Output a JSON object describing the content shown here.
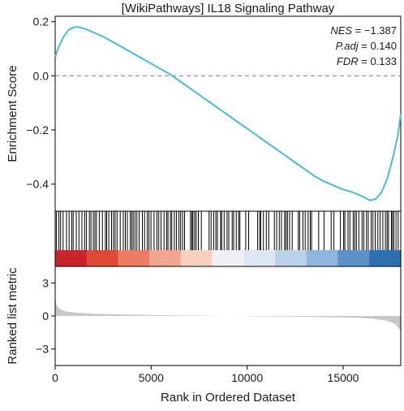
{
  "chart_data": {
    "type": "line",
    "title": "[WikiPathways] IL18 Signaling Pathway",
    "xlabel": "Rank in Ordered Dataset",
    "xlim": [
      0,
      18000
    ],
    "x_ticks": [
      0,
      5000,
      10000,
      15000
    ],
    "panels": {
      "enrichment": {
        "ylabel": "Enrichment Score",
        "ylim": [
          -0.5,
          0.22
        ],
        "y_ticks": [
          0.2,
          0.0,
          -0.2,
          -0.4
        ],
        "y_tick_labels": [
          "0.2",
          "0.0",
          "−0.2",
          "−0.4"
        ],
        "zero_line": true,
        "line_color": "#4fb8cf",
        "series": {
          "x": [
            0,
            150,
            400,
            700,
            1000,
            1200,
            1500,
            2000,
            2500,
            3000,
            3500,
            4000,
            4500,
            5000,
            5500,
            6000,
            6500,
            7000,
            7500,
            8000,
            8500,
            9000,
            9500,
            10000,
            10500,
            11000,
            11500,
            12000,
            12500,
            13000,
            13500,
            14000,
            14500,
            15000,
            15500,
            16000,
            16400,
            16700,
            17000,
            17300,
            17600,
            17850,
            18000
          ],
          "y": [
            0.07,
            0.1,
            0.14,
            0.17,
            0.18,
            0.18,
            0.175,
            0.16,
            0.145,
            0.125,
            0.105,
            0.085,
            0.065,
            0.045,
            0.025,
            0.005,
            -0.02,
            -0.045,
            -0.07,
            -0.095,
            -0.12,
            -0.145,
            -0.17,
            -0.195,
            -0.22,
            -0.245,
            -0.27,
            -0.295,
            -0.32,
            -0.345,
            -0.37,
            -0.39,
            -0.405,
            -0.42,
            -0.43,
            -0.445,
            -0.46,
            -0.455,
            -0.43,
            -0.38,
            -0.3,
            -0.22,
            -0.14
          ]
        }
      },
      "hits": {
        "bar_colors": [
          "#c8242a",
          "#de4a36",
          "#ec7c62",
          "#f3a68f",
          "#f8d0c0",
          "#f0f0f4",
          "#dde6f3",
          "#bcd1ea",
          "#8fb6de",
          "#5b93c8",
          "#2e6fb0"
        ]
      },
      "ranked_metric": {
        "ylabel": "Ranked list metric",
        "ylim": [
          -4.5,
          4.5
        ],
        "y_ticks": [
          3,
          0,
          -3
        ],
        "y_tick_labels": [
          "3",
          "0",
          "−3"
        ],
        "fill_color": "#c8c8c8",
        "series": {
          "x": [
            0,
            40,
            120,
            300,
            600,
            1000,
            2000,
            4000,
            6000,
            8000,
            10000,
            12000,
            14000,
            15500,
            16500,
            17200,
            17700,
            17950,
            18000
          ],
          "y": [
            1.9,
            1.2,
            0.85,
            0.55,
            0.4,
            0.32,
            0.2,
            0.12,
            0.06,
            0.02,
            -0.02,
            -0.06,
            -0.1,
            -0.15,
            -0.25,
            -0.4,
            -0.7,
            -1.2,
            -1.6
          ]
        }
      }
    }
  },
  "stats": [
    {
      "key": "NES",
      "value": "= −1.387"
    },
    {
      "key": "P.adj",
      "value": "= 0.140"
    },
    {
      "key": "FDR",
      "value": "= 0.133"
    }
  ]
}
